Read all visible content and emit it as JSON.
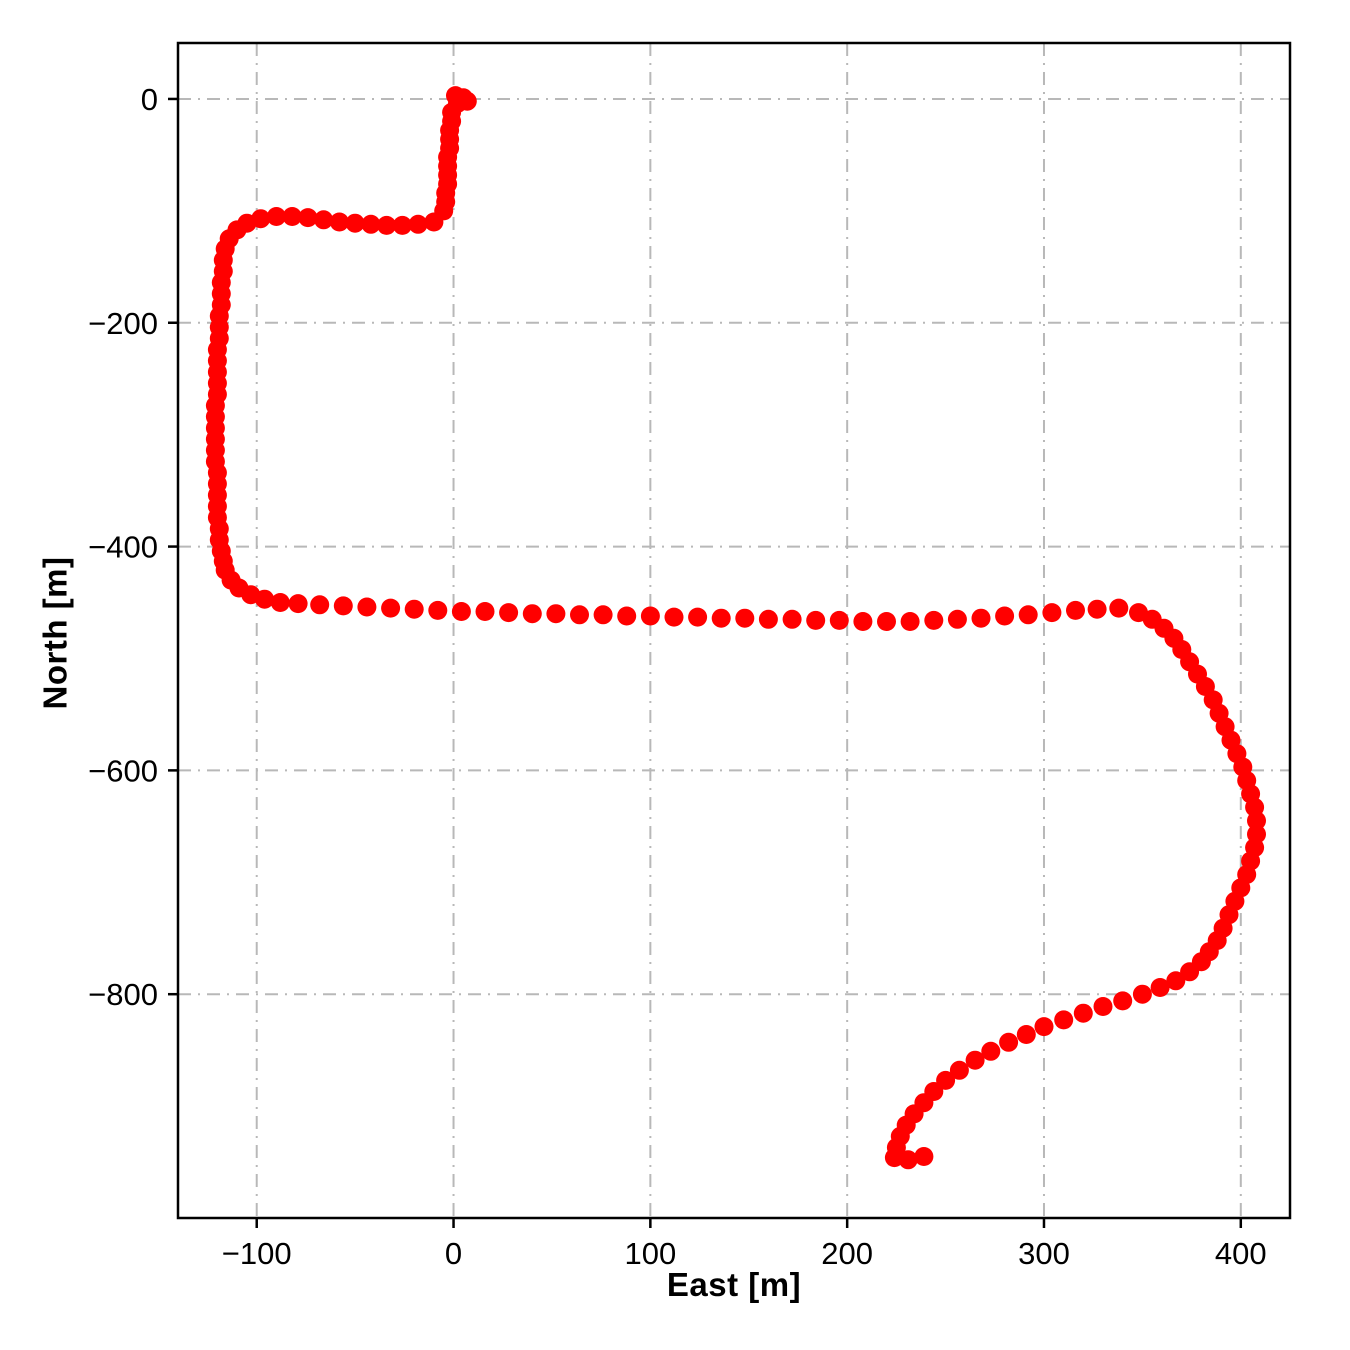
{
  "figure": {
    "background": "#ffffff",
    "axes_border_color": "#000000",
    "grid_color": "#b8b8b8",
    "grid_style": "dash-dot",
    "tick_color": "#000000"
  },
  "chart_data": {
    "type": "scatter",
    "title": "",
    "xlabel": "East [m]",
    "ylabel": "North [m]",
    "xlim": [
      -140,
      425
    ],
    "ylim": [
      -1000,
      50
    ],
    "x_ticks": [
      -100,
      0,
      100,
      200,
      300,
      400
    ],
    "x_tick_labels": [
      "−100",
      "0",
      "100",
      "200",
      "300",
      "400"
    ],
    "y_ticks": [
      0,
      -200,
      -400,
      -600,
      -800
    ],
    "y_tick_labels": [
      "0",
      "−200",
      "−400",
      "−600",
      "−800"
    ],
    "grid": true,
    "legend": false,
    "series": [
      {
        "name": "vehicle-trajectory",
        "color": "#ff0000",
        "marker": "circle",
        "marker_size_px": 19,
        "points": [
          [
            1,
            3
          ],
          [
            5,
            1
          ],
          [
            7,
            -2
          ],
          [
            2,
            -4
          ],
          [
            -1,
            -12
          ],
          [
            -1,
            -20
          ],
          [
            -2,
            -28
          ],
          [
            -2,
            -36
          ],
          [
            -2,
            -44
          ],
          [
            -3,
            -52
          ],
          [
            -3,
            -60
          ],
          [
            -3,
            -68
          ],
          [
            -3,
            -76
          ],
          [
            -4,
            -84
          ],
          [
            -4,
            -92
          ],
          [
            -5,
            -100
          ],
          [
            -10,
            -110
          ],
          [
            -18,
            -112
          ],
          [
            -26,
            -113
          ],
          [
            -34,
            -113
          ],
          [
            -42,
            -112
          ],
          [
            -50,
            -111
          ],
          [
            -58,
            -110
          ],
          [
            -66,
            -108
          ],
          [
            -74,
            -106
          ],
          [
            -82,
            -105
          ],
          [
            -90,
            -105
          ],
          [
            -98,
            -107
          ],
          [
            -105,
            -111
          ],
          [
            -110,
            -117
          ],
          [
            -114,
            -125
          ],
          [
            -116,
            -134
          ],
          [
            -117,
            -144
          ],
          [
            -117,
            -154
          ],
          [
            -118,
            -164
          ],
          [
            -118,
            -174
          ],
          [
            -118,
            -184
          ],
          [
            -119,
            -194
          ],
          [
            -119,
            -204
          ],
          [
            -119,
            -214
          ],
          [
            -120,
            -224
          ],
          [
            -120,
            -234
          ],
          [
            -120,
            -244
          ],
          [
            -120,
            -254
          ],
          [
            -120,
            -264
          ],
          [
            -121,
            -274
          ],
          [
            -121,
            -284
          ],
          [
            -121,
            -294
          ],
          [
            -121,
            -304
          ],
          [
            -121,
            -314
          ],
          [
            -121,
            -324
          ],
          [
            -120,
            -334
          ],
          [
            -120,
            -344
          ],
          [
            -120,
            -354
          ],
          [
            -120,
            -364
          ],
          [
            -120,
            -374
          ],
          [
            -119,
            -384
          ],
          [
            -119,
            -394
          ],
          [
            -118,
            -404
          ],
          [
            -117,
            -413
          ],
          [
            -116,
            -421
          ],
          [
            -113,
            -430
          ],
          [
            -109,
            -437
          ],
          [
            -103,
            -443
          ],
          [
            -96,
            -447
          ],
          [
            -88,
            -450
          ],
          [
            -79,
            -451
          ],
          [
            -68,
            -452
          ],
          [
            -56,
            -453
          ],
          [
            -44,
            -454
          ],
          [
            -32,
            -455
          ],
          [
            -20,
            -456
          ],
          [
            -8,
            -457
          ],
          [
            4,
            -458
          ],
          [
            16,
            -458
          ],
          [
            28,
            -459
          ],
          [
            40,
            -460
          ],
          [
            52,
            -460
          ],
          [
            64,
            -461
          ],
          [
            76,
            -461
          ],
          [
            88,
            -462
          ],
          [
            100,
            -462
          ],
          [
            112,
            -463
          ],
          [
            124,
            -463
          ],
          [
            136,
            -464
          ],
          [
            148,
            -464
          ],
          [
            160,
            -465
          ],
          [
            172,
            -465
          ],
          [
            184,
            -466
          ],
          [
            196,
            -466
          ],
          [
            208,
            -467
          ],
          [
            220,
            -467
          ],
          [
            232,
            -467
          ],
          [
            244,
            -466
          ],
          [
            256,
            -465
          ],
          [
            268,
            -464
          ],
          [
            280,
            -462
          ],
          [
            292,
            -461
          ],
          [
            304,
            -459
          ],
          [
            316,
            -457
          ],
          [
            327,
            -456
          ],
          [
            338,
            -455
          ],
          [
            348,
            -459
          ],
          [
            355,
            -465
          ],
          [
            361,
            -473
          ],
          [
            366,
            -482
          ],
          [
            370,
            -492
          ],
          [
            374,
            -503
          ],
          [
            378,
            -514
          ],
          [
            382,
            -525
          ],
          [
            386,
            -537
          ],
          [
            389,
            -549
          ],
          [
            392,
            -561
          ],
          [
            395,
            -573
          ],
          [
            398,
            -585
          ],
          [
            401,
            -597
          ],
          [
            403,
            -609
          ],
          [
            405,
            -621
          ],
          [
            407,
            -633
          ],
          [
            408,
            -645
          ],
          [
            408,
            -657
          ],
          [
            407,
            -669
          ],
          [
            405,
            -681
          ],
          [
            403,
            -693
          ],
          [
            400,
            -705
          ],
          [
            397,
            -717
          ],
          [
            394,
            -729
          ],
          [
            391,
            -741
          ],
          [
            388,
            -752
          ],
          [
            384,
            -762
          ],
          [
            380,
            -771
          ],
          [
            374,
            -780
          ],
          [
            367,
            -788
          ],
          [
            359,
            -794
          ],
          [
            350,
            -800
          ],
          [
            340,
            -806
          ],
          [
            330,
            -811
          ],
          [
            320,
            -817
          ],
          [
            310,
            -823
          ],
          [
            300,
            -829
          ],
          [
            291,
            -836
          ],
          [
            282,
            -843
          ],
          [
            273,
            -851
          ],
          [
            265,
            -859
          ],
          [
            257,
            -868
          ],
          [
            250,
            -877
          ],
          [
            244,
            -887
          ],
          [
            239,
            -897
          ],
          [
            234,
            -907
          ],
          [
            230,
            -917
          ],
          [
            227,
            -927
          ],
          [
            225,
            -937
          ],
          [
            224,
            -946
          ],
          [
            231,
            -948
          ],
          [
            239,
            -945
          ]
        ]
      }
    ]
  }
}
